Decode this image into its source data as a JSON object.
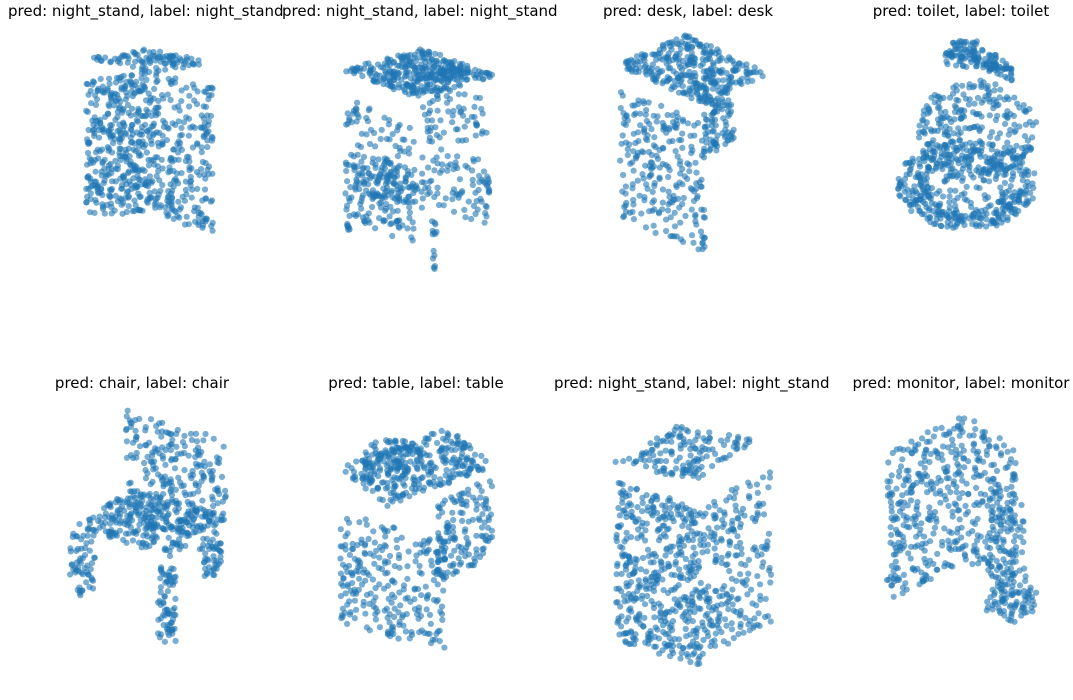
{
  "figure": {
    "marker_color": "#1f77b4",
    "background": "#ffffff"
  },
  "chart_data": [
    {
      "type": "scatter",
      "title": "pred: night_stand, label: night_stand",
      "shape": "cabinet-narrow"
    },
    {
      "type": "scatter",
      "title": "pred: night_stand, label: night_stand",
      "shape": "cabinet-open"
    },
    {
      "type": "scatter",
      "title": "pred: desk, label: desk",
      "shape": "desk"
    },
    {
      "type": "scatter",
      "title": "pred: toilet, label: toilet",
      "shape": "toilet"
    },
    {
      "type": "scatter",
      "title": "pred: chair, label: chair",
      "shape": "chair"
    },
    {
      "type": "scatter",
      "title": "pred: table, label: table",
      "shape": "table"
    },
    {
      "type": "scatter",
      "title": "pred: night_stand, label: night_stand",
      "shape": "cabinet-wide"
    },
    {
      "type": "scatter",
      "title": "pred: monitor, label: monitor",
      "shape": "monitor"
    }
  ]
}
